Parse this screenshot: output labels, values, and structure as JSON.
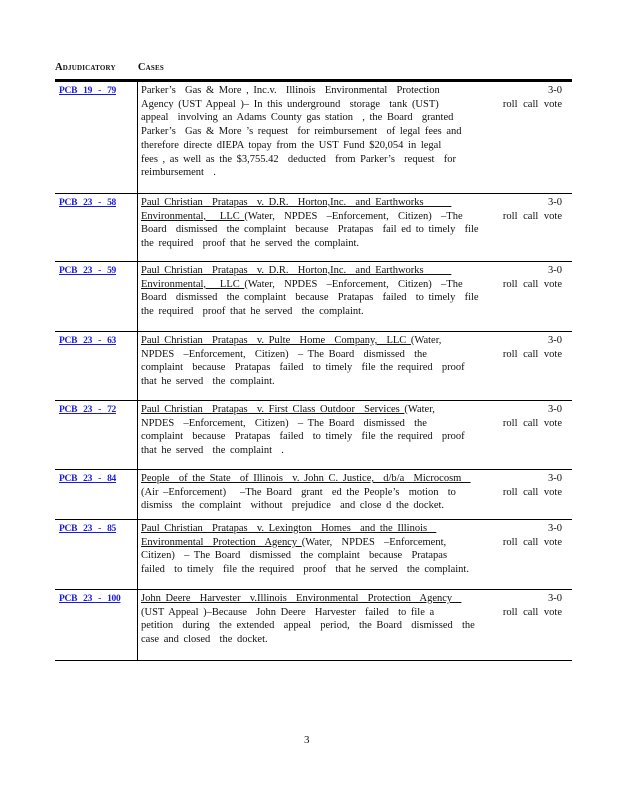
{
  "section": {
    "title_word1": "Adjudicatory",
    "title_word2": "Cases"
  },
  "colors": {
    "link": "#1a1adb",
    "text": "#111111"
  },
  "cases": [
    {
      "docket": "PCB 19 - 79",
      "vote1": "3-0",
      "vote2": "roll call vote",
      "lines": [
        [
          "",
          "Parker’s  Gas & More , Inc.v.  Illinois  Environmental  Protection"
        ],
        [
          "",
          "Agency (UST Appeal )– In this underground  storage  tank (UST)"
        ],
        [
          "",
          "appeal  involving an Adams County gas station  , the Board  granted"
        ],
        [
          "",
          "Parker’s  Gas & More ’s request  for reimbursement  of legal fees and"
        ],
        [
          "",
          "therefore directe dIEPA topay from the UST Fund $20,054 in legal"
        ],
        [
          "",
          "fees , as well as the $3,755.42  deducted  from Parker’s  request  for"
        ],
        [
          "",
          "reimbursement  ."
        ]
      ]
    },
    {
      "docket": "PCB 23 - 58",
      "vote1": "3-0",
      "vote2": "roll call vote",
      "lines": [
        [
          "Paul Christian  Pratapas  v. D.R.  Horton,Inc.  and Earthworks      ",
          ""
        ],
        [
          "Environmental,   LLC ",
          "(Water,  NPDES  –Enforcement,  Citizen)  –The"
        ],
        [
          "",
          "Board  dismissed  the complaint  because  Pratapas  fail ed to timely  file"
        ],
        [
          "",
          "the required  proof that he served the complaint."
        ]
      ]
    },
    {
      "docket": "PCB 23 - 59",
      "vote1": "3-0",
      "vote2": "roll call vote",
      "lines": [
        [
          "Paul Christian  Pratapas  v. D.R.  Horton,Inc.  and Earthworks      ",
          ""
        ],
        [
          "Environmental,   LLC ",
          "(Water,  NPDES  –Enforcement,  Citizen)  –The"
        ],
        [
          "",
          "Board  dismissed  the complaint  because  Pratapas  failed  to timely  file"
        ],
        [
          "",
          "the required  proof that he served  the complaint."
        ]
      ]
    },
    {
      "docket": "PCB 23 - 63",
      "vote1": "3-0",
      "vote2": "roll call vote",
      "lines": [
        [
          "Paul Christian  Pratapas  v. Pulte  Home  Company,  LLC ",
          "(Water,"
        ],
        [
          "",
          "NPDES  –Enforcement,  Citizen)  – The Board  dismissed  the"
        ],
        [
          "",
          "complaint  because  Pratapas  failed  to timely  file the required  proof"
        ],
        [
          "",
          "that he served  the complaint."
        ]
      ]
    },
    {
      "docket": "PCB 23 - 72",
      "vote1": "3-0",
      "vote2": "roll call vote",
      "lines": [
        [
          "Paul Christian  Pratapas  v. First Class Outdoor  Services ",
          "(Water,"
        ],
        [
          "",
          "NPDES  –Enforcement,  Citizen)  – The Board  dismissed  the"
        ],
        [
          "",
          "complaint  because  Pratapas  failed  to timely  file the required  proof"
        ],
        [
          "",
          "that he served  the complaint  ."
        ]
      ]
    },
    {
      "docket": "PCB 23 - 84",
      "vote1": "3-0",
      "vote2": "roll call vote",
      "lines": [
        [
          "People  of the State  of Illinois  v. John C. Justice,  d/b/a  Microcosm  ",
          ""
        ],
        [
          "",
          "(Air –Enforcement)   –The Board  grant  ed the People’s  motion  to"
        ],
        [
          "",
          "dismiss  the complaint  without  prejudice  and close d the docket."
        ]
      ]
    },
    {
      "docket": "PCB 23 - 85",
      "vote1": "3-0",
      "vote2": "roll call vote",
      "lines": [
        [
          "Paul Christian  Pratapas  v. Lexington  Homes  and the Illinois  ",
          ""
        ],
        [
          "Environmental  Protection  Agency ",
          "(Water,  NPDES  –Enforcement,"
        ],
        [
          "",
          "Citizen)  – The Board  dismissed  the complaint  because  Pratapas"
        ],
        [
          "",
          "failed  to timely  file the required  proof  that he served  the complaint."
        ]
      ]
    },
    {
      "docket": "PCB 23 - 100",
      "vote1": "3-0",
      "vote2": "roll call vote",
      "lines": [
        [
          "John Deere  Harvester  v.Illinois  Environmental  Protection  Agency  ",
          ""
        ],
        [
          "",
          "(UST Appeal )–Because  John Deere  Harvester  failed  to file a"
        ],
        [
          "",
          "petition  during  the extended  appeal  period,  the Board  dismissed  the"
        ],
        [
          "",
          "case and closed  the docket."
        ]
      ]
    }
  ],
  "page_number": "3"
}
